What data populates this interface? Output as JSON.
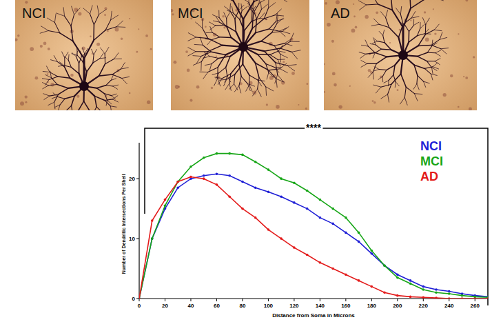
{
  "panel_labels": [
    "NCI",
    "MCI",
    "AD"
  ],
  "chart_data": {
    "type": "line",
    "x_label": "Distance from Soma in Microns",
    "y_label": "Number of Dendritic Intersections Per Shell",
    "annotation": "****",
    "x": [
      0,
      10,
      20,
      30,
      40,
      50,
      60,
      70,
      80,
      90,
      100,
      110,
      120,
      130,
      140,
      150,
      160,
      170,
      180,
      190,
      200,
      210,
      220,
      230,
      240,
      250,
      260,
      270
    ],
    "series": [
      {
        "name": "NCI",
        "color": "#1f1fd6",
        "marker": "circle",
        "values": [
          0,
          10,
          15,
          18.5,
          20,
          20.5,
          20.8,
          20.5,
          19.5,
          18.5,
          17.8,
          17,
          16,
          15,
          13.5,
          12.5,
          11,
          9.5,
          7.5,
          5.5,
          4,
          3,
          2,
          1.5,
          1.2,
          0.8,
          0.5,
          0.3
        ]
      },
      {
        "name": "MCI",
        "color": "#17a617",
        "marker": "circle",
        "values": [
          0,
          10,
          15.5,
          19.5,
          22,
          23.5,
          24.2,
          24.2,
          24,
          22.8,
          21.5,
          20,
          19.3,
          18,
          16.5,
          15,
          13.5,
          11,
          8,
          5.5,
          3.5,
          2.5,
          1.5,
          1,
          0.8,
          0.5,
          0.3,
          0.2
        ]
      },
      {
        "name": "AD",
        "color": "#e31a1a",
        "marker": "circle",
        "values": [
          0,
          13,
          16.5,
          19.5,
          20.3,
          20,
          19,
          17,
          15,
          13.5,
          11.5,
          10,
          8.5,
          7.3,
          6,
          5,
          4,
          3,
          2,
          1,
          0.5,
          0.3,
          0.2,
          0.1,
          0,
          0,
          0,
          0
        ]
      }
    ],
    "xlim": [
      0,
      270
    ],
    "ylim": [
      0,
      26
    ],
    "xticks": [
      0,
      20,
      40,
      60,
      80,
      100,
      120,
      140,
      160,
      180,
      200,
      220,
      240,
      260
    ],
    "yticks": [
      0,
      10,
      20
    ],
    "legend": "upper right",
    "grid": false
  }
}
